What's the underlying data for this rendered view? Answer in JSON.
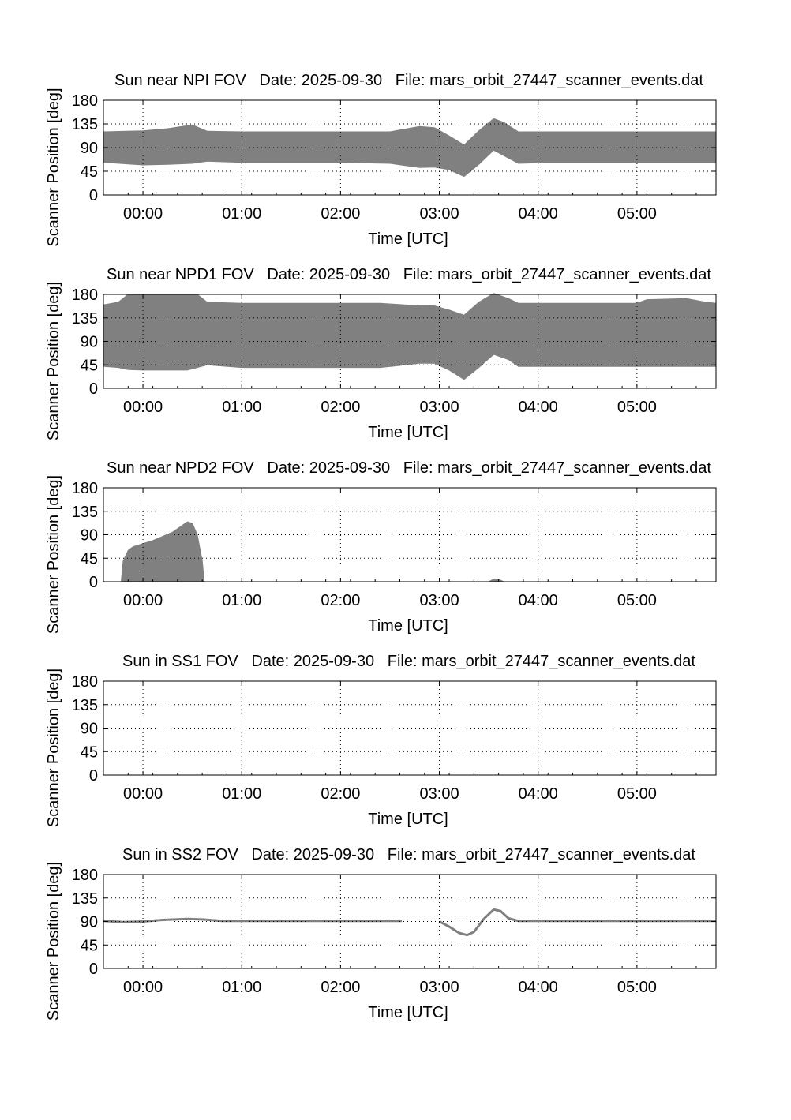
{
  "chart_data": [
    {
      "type": "area",
      "title": "Sun near NPI FOV   Date: 2025-09-30   File: mars_orbit_27447_scanner_events.dat",
      "xlabel": "Time [UTC]",
      "ylabel": "Scanner Position [deg]",
      "xticks": [
        "00:00",
        "01:00",
        "02:00",
        "03:00",
        "04:00",
        "05:00"
      ],
      "yticks": [
        "0",
        "45",
        "90",
        "135",
        "180"
      ],
      "xlim": [
        -0.4,
        5.8
      ],
      "ylim": [
        0,
        180
      ],
      "grid": true,
      "series": [
        {
          "x": [
            -0.4,
            0,
            0.25,
            0.5,
            0.65,
            1.0,
            2.0,
            2.5,
            2.8,
            2.95,
            3.1,
            3.25,
            3.4,
            3.55,
            3.65,
            3.8,
            4.0,
            5.0,
            5.8
          ],
          "upper": [
            120,
            122,
            126,
            133,
            121,
            120,
            120,
            120,
            130,
            128,
            112,
            95,
            122,
            145,
            138,
            120,
            120,
            120,
            120
          ],
          "lower": [
            62,
            57,
            58,
            60,
            64,
            62,
            62,
            60,
            52,
            53,
            48,
            35,
            58,
            85,
            75,
            60,
            61,
            61,
            61
          ]
        }
      ]
    },
    {
      "type": "area",
      "title": "Sun near NPD1 FOV   Date: 2025-09-30   File: mars_orbit_27447_scanner_events.dat",
      "xlabel": "Time [UTC]",
      "ylabel": "Scanner Position [deg]",
      "xticks": [
        "00:00",
        "01:00",
        "02:00",
        "03:00",
        "04:00",
        "05:00"
      ],
      "yticks": [
        "0",
        "45",
        "90",
        "135",
        "180"
      ],
      "xlim": [
        -0.4,
        5.8
      ],
      "ylim": [
        0,
        180
      ],
      "grid": true,
      "series": [
        {
          "x": [
            -0.4,
            -0.25,
            -0.15,
            0,
            0.45,
            0.55,
            0.65,
            1.0,
            2.0,
            2.4,
            2.8,
            2.95,
            3.1,
            3.25,
            3.4,
            3.55,
            3.7,
            3.8,
            4.0,
            5.0,
            5.1,
            5.5,
            5.7,
            5.8
          ],
          "upper": [
            160,
            165,
            180,
            180,
            180,
            180,
            165,
            163,
            163,
            163,
            158,
            158,
            150,
            140,
            165,
            182,
            172,
            163,
            163,
            163,
            170,
            172,
            165,
            163
          ],
          "lower": [
            42,
            40,
            36,
            35,
            35,
            40,
            45,
            40,
            40,
            40,
            48,
            48,
            35,
            17,
            40,
            65,
            55,
            42,
            42,
            42,
            42,
            42,
            42,
            42
          ]
        }
      ]
    },
    {
      "type": "area",
      "title": "Sun near NPD2 FOV   Date: 2025-09-30   File: mars_orbit_27447_scanner_events.dat",
      "xlabel": "Time [UTC]",
      "ylabel": "Scanner Position [deg]",
      "xticks": [
        "00:00",
        "01:00",
        "02:00",
        "03:00",
        "04:00",
        "05:00"
      ],
      "yticks": [
        "0",
        "45",
        "90",
        "135",
        "180"
      ],
      "xlim": [
        -0.4,
        5.8
      ],
      "ylim": [
        0,
        180
      ],
      "grid": true,
      "series": [
        {
          "x": [
            -0.22,
            -0.2,
            -0.15,
            -0.1,
            0,
            0.1,
            0.3,
            0.45,
            0.5,
            0.55,
            0.6,
            0.62
          ],
          "upper": [
            0,
            40,
            60,
            67,
            73,
            79,
            95,
            115,
            112,
            90,
            40,
            0
          ],
          "lower": [
            0,
            0,
            0,
            0,
            0,
            0,
            0,
            0,
            0,
            0,
            0,
            0
          ]
        },
        {
          "x": [
            3.5,
            3.55,
            3.6,
            3.65
          ],
          "upper": [
            0,
            5,
            5,
            0
          ],
          "lower": [
            0,
            0,
            0,
            0
          ]
        }
      ]
    },
    {
      "type": "area",
      "title": "Sun in SS1 FOV   Date: 2025-09-30   File: mars_orbit_27447_scanner_events.dat",
      "xlabel": "Time [UTC]",
      "ylabel": "Scanner Position [deg]",
      "xticks": [
        "00:00",
        "01:00",
        "02:00",
        "03:00",
        "04:00",
        "05:00"
      ],
      "yticks": [
        "0",
        "45",
        "90",
        "135",
        "180"
      ],
      "xlim": [
        -0.4,
        5.8
      ],
      "ylim": [
        0,
        180
      ],
      "grid": true,
      "series": []
    },
    {
      "type": "line",
      "title": "Sun in SS2 FOV   Date: 2025-09-30   File: mars_orbit_27447_scanner_events.dat",
      "xlabel": "Time [UTC]",
      "ylabel": "Scanner Position [deg]",
      "xticks": [
        "00:00",
        "01:00",
        "02:00",
        "03:00",
        "04:00",
        "05:00"
      ],
      "yticks": [
        "0",
        "45",
        "90",
        "135",
        "180"
      ],
      "xlim": [
        -0.4,
        5.8
      ],
      "ylim": [
        0,
        180
      ],
      "grid": true,
      "series": [
        {
          "x": [
            -0.4,
            -0.2,
            0,
            0.2,
            0.45,
            0.6,
            0.8,
            1.0,
            2.0,
            2.62
          ],
          "y": [
            91,
            89,
            90,
            93,
            95,
            94,
            91,
            91,
            91,
            91
          ]
        },
        {
          "x": [
            3.0,
            3.1,
            3.2,
            3.28,
            3.35,
            3.45,
            3.55,
            3.62,
            3.7,
            3.8,
            4.0,
            5.0,
            5.8
          ],
          "y": [
            90,
            80,
            68,
            64,
            70,
            95,
            113,
            110,
            96,
            91,
            91,
            91,
            91
          ]
        }
      ]
    }
  ]
}
